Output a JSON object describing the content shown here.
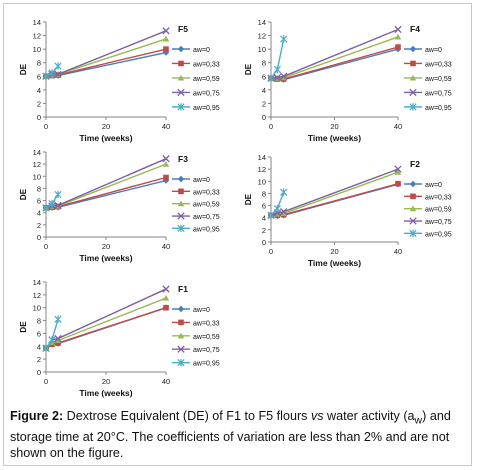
{
  "caption": {
    "label": "Figure 2:",
    "text_1": " Dextrose Equivalent (DE) of F1 to F5 flours ",
    "vs": "vs",
    "text_2": " water activity (a",
    "sub": "w",
    "text_3": ") and storage time at 20°C. The coefficients of variation are less than 2% and are not shown on the figure."
  },
  "series_styles": [
    {
      "color": "#4a7ebb",
      "marker": "diamond"
    },
    {
      "color": "#be4b48",
      "marker": "square"
    },
    {
      "color": "#98b954",
      "marker": "triangle"
    },
    {
      "color": "#7d60a0",
      "marker": "x"
    },
    {
      "color": "#4bacc6",
      "marker": "star"
    }
  ],
  "chart_data": [
    {
      "type": "line",
      "title": "F5",
      "xlabel": "Time (weeks)",
      "ylabel": "DE",
      "xlim": [
        0,
        40
      ],
      "ylim": [
        0,
        14
      ],
      "xticks": [
        0,
        20,
        40
      ],
      "yticks": [
        0,
        2,
        4,
        6,
        8,
        10,
        12,
        14
      ],
      "series": [
        {
          "name": "aw=0",
          "x": [
            0,
            2,
            4,
            40
          ],
          "y": [
            6.0,
            6.1,
            6.1,
            9.5
          ]
        },
        {
          "name": "aw=0,33",
          "x": [
            0,
            2,
            4,
            40
          ],
          "y": [
            6.0,
            6.1,
            6.2,
            10.0
          ]
        },
        {
          "name": "aw=0,59",
          "x": [
            0,
            2,
            4,
            40
          ],
          "y": [
            6.0,
            6.2,
            6.3,
            11.5
          ]
        },
        {
          "name": "aw=0,75",
          "x": [
            0,
            2,
            4,
            40
          ],
          "y": [
            6.0,
            6.3,
            6.3,
            12.7
          ]
        },
        {
          "name": "aw=0,95",
          "x": [
            0,
            2,
            4
          ],
          "y": [
            6.0,
            6.5,
            7.5
          ]
        }
      ]
    },
    {
      "type": "line",
      "title": "F4",
      "xlabel": "Time (weeks)",
      "ylabel": "DE",
      "xlim": [
        0,
        40
      ],
      "ylim": [
        0,
        14
      ],
      "xticks": [
        0,
        20,
        40
      ],
      "yticks": [
        0,
        2,
        4,
        6,
        8,
        10,
        12,
        14
      ],
      "series": [
        {
          "name": "aw=0",
          "x": [
            0,
            2,
            4,
            40
          ],
          "y": [
            5.7,
            5.6,
            5.5,
            10.0
          ]
        },
        {
          "name": "aw=0,33",
          "x": [
            0,
            2,
            4,
            40
          ],
          "y": [
            5.7,
            5.6,
            5.6,
            10.3
          ]
        },
        {
          "name": "aw=0,59",
          "x": [
            0,
            2,
            4,
            40
          ],
          "y": [
            5.7,
            5.7,
            5.8,
            11.8
          ]
        },
        {
          "name": "aw=0,75",
          "x": [
            0,
            2,
            4,
            40
          ],
          "y": [
            5.7,
            5.8,
            6.0,
            12.9
          ]
        },
        {
          "name": "aw=0,95",
          "x": [
            0,
            2,
            4
          ],
          "y": [
            5.7,
            7.0,
            11.5
          ]
        }
      ]
    },
    {
      "type": "line",
      "title": "F3",
      "xlabel": "Time (weeks)",
      "ylabel": "DE",
      "xlim": [
        0,
        40
      ],
      "ylim": [
        0,
        14
      ],
      "xticks": [
        0,
        20,
        40
      ],
      "yticks": [
        0,
        2,
        4,
        6,
        8,
        10,
        12,
        14
      ],
      "series": [
        {
          "name": "aw=0",
          "x": [
            0,
            2,
            4,
            40
          ],
          "y": [
            4.8,
            4.8,
            4.9,
            9.3
          ]
        },
        {
          "name": "aw=0,33",
          "x": [
            0,
            2,
            4,
            40
          ],
          "y": [
            4.8,
            4.9,
            5.0,
            9.8
          ]
        },
        {
          "name": "aw=0,59",
          "x": [
            0,
            2,
            4,
            40
          ],
          "y": [
            4.8,
            5.0,
            5.1,
            12.0
          ]
        },
        {
          "name": "aw=0,75",
          "x": [
            0,
            2,
            4,
            40
          ],
          "y": [
            4.8,
            5.1,
            5.2,
            12.9
          ]
        },
        {
          "name": "aw=0,95",
          "x": [
            0,
            2,
            4
          ],
          "y": [
            4.8,
            5.5,
            7.0
          ]
        }
      ]
    },
    {
      "type": "line",
      "title": "F2",
      "xlabel": "Time (weeks)",
      "ylabel": "DE",
      "xlim": [
        0,
        40
      ],
      "ylim": [
        0,
        14
      ],
      "xticks": [
        0,
        20,
        40
      ],
      "yticks": [
        0,
        2,
        4,
        6,
        8,
        10,
        12,
        14
      ],
      "series": [
        {
          "name": "aw=0",
          "x": [
            0,
            2,
            4,
            40
          ],
          "y": [
            4.4,
            4.3,
            4.4,
            9.5
          ]
        },
        {
          "name": "aw=0,33",
          "x": [
            0,
            2,
            4,
            40
          ],
          "y": [
            4.4,
            4.4,
            4.5,
            9.6
          ]
        },
        {
          "name": "aw=0,59",
          "x": [
            0,
            2,
            4,
            40
          ],
          "y": [
            4.4,
            4.6,
            4.7,
            11.5
          ]
        },
        {
          "name": "aw=0,75",
          "x": [
            0,
            2,
            4,
            40
          ],
          "y": [
            4.4,
            4.8,
            5.0,
            12.0
          ]
        },
        {
          "name": "aw=0,95",
          "x": [
            0,
            2,
            4
          ],
          "y": [
            4.4,
            5.5,
            8.2
          ]
        }
      ]
    },
    {
      "type": "line",
      "title": "F1",
      "xlabel": "Time (weeks)",
      "ylabel": "DE",
      "xlim": [
        0,
        40
      ],
      "ylim": [
        0,
        14
      ],
      "xticks": [
        0,
        20,
        40
      ],
      "yticks": [
        0,
        2,
        4,
        6,
        8,
        10,
        12,
        14
      ],
      "series": [
        {
          "name": "aw=0",
          "x": [
            0,
            2,
            4,
            40
          ],
          "y": [
            3.7,
            4.3,
            4.4,
            10.0
          ]
        },
        {
          "name": "aw=0,33",
          "x": [
            0,
            2,
            4,
            40
          ],
          "y": [
            3.7,
            4.3,
            4.5,
            10.0
          ]
        },
        {
          "name": "aw=0,59",
          "x": [
            0,
            2,
            4,
            40
          ],
          "y": [
            3.7,
            4.6,
            4.9,
            11.5
          ]
        },
        {
          "name": "aw=0,75",
          "x": [
            0,
            2,
            4,
            40
          ],
          "y": [
            3.7,
            5.0,
            5.2,
            12.9
          ]
        },
        {
          "name": "aw=0,95",
          "x": [
            0,
            2,
            4
          ],
          "y": [
            3.7,
            5.0,
            8.2
          ]
        }
      ]
    }
  ]
}
